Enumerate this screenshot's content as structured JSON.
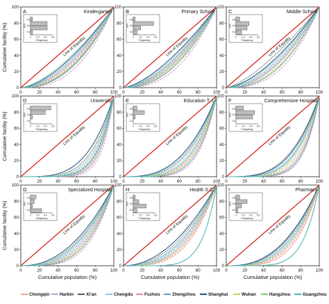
{
  "shared": {
    "ylabel": "Cumulative facility (%)",
    "xlabel": "Cumulative population (%)",
    "equality_label": "Line of Equality",
    "inset_xlabel": "Frequency",
    "inset_ylabel": "Gini",
    "inset_xticks": [
      "0",
      "0.2",
      "0.4",
      "0.6"
    ],
    "inset_yticks": [
      "0.4",
      "0.6",
      "0.8"
    ],
    "ticks": [
      "0",
      "20",
      "40",
      "60",
      "80",
      "100"
    ]
  },
  "legend": [
    {
      "name": "Chongqin",
      "color": "#f4a7a0"
    },
    {
      "name": "Harbin",
      "color": "#b9a7d3"
    },
    {
      "name": "Xi'an",
      "color": "#5e5e5e"
    },
    {
      "name": "Chengdu",
      "color": "#8cc6e8"
    },
    {
      "name": "Fuzhou",
      "color": "#e88ac2"
    },
    {
      "name": "Zhengzhou",
      "color": "#5aa2c8"
    },
    {
      "name": "Shanghai",
      "color": "#2a5a8a"
    },
    {
      "name": "Wuhan",
      "color": "#d8d24a"
    },
    {
      "name": "Hangzhou",
      "color": "#7ec87e"
    },
    {
      "name": "Guangzhou",
      "color": "#4fb6b6"
    }
  ],
  "chart_data": [
    {
      "type": "line",
      "letter": "A",
      "title": "Kindergarten",
      "xlim": [
        0,
        100
      ],
      "ylim": [
        0,
        100
      ],
      "curve_exponents": [
        1.9,
        2.0,
        2.2,
        1.8,
        2.6,
        1.7,
        1.6,
        2.1,
        1.5,
        2.3
      ],
      "inset_frequencies": [
        0.05,
        0.45,
        0.45,
        0.05
      ]
    },
    {
      "type": "line",
      "letter": "B",
      "title": "Primary School",
      "xlim": [
        0,
        100
      ],
      "ylim": [
        0,
        100
      ],
      "curve_exponents": [
        2.0,
        1.8,
        1.7,
        1.9,
        2.5,
        1.6,
        1.5,
        2.1,
        1.8,
        2.2
      ],
      "inset_frequencies": [
        0.05,
        0.55,
        0.2,
        0.1
      ]
    },
    {
      "type": "line",
      "letter": "C",
      "title": "Middle School",
      "xlim": [
        0,
        100
      ],
      "ylim": [
        0,
        100
      ],
      "curve_exponents": [
        2.1,
        1.9,
        1.4,
        2.0,
        2.7,
        1.7,
        1.6,
        2.3,
        1.8,
        2.4
      ],
      "inset_frequencies": [
        0.1,
        0.35,
        0.3,
        0.15
      ]
    },
    {
      "type": "line",
      "letter": "D",
      "title": "University",
      "xlim": [
        0,
        100
      ],
      "ylim": [
        0,
        100
      ],
      "curve_exponents": [
        6.5,
        5.5,
        4.2,
        7.0,
        8.0,
        5.0,
        3.6,
        6.0,
        4.6,
        5.8
      ],
      "inset_frequencies": [
        0.55,
        0.4,
        0.05,
        0.0
      ]
    },
    {
      "type": "line",
      "letter": "E",
      "title": "Education T. I.",
      "xlim": [
        0,
        100
      ],
      "ylim": [
        0,
        100
      ],
      "curve_exponents": [
        4.5,
        4.0,
        3.2,
        3.8,
        5.5,
        3.0,
        2.8,
        4.2,
        3.5,
        5.0
      ],
      "inset_frequencies": [
        0.1,
        0.3,
        0.05,
        0.0
      ]
    },
    {
      "type": "line",
      "letter": "F",
      "title": "Comprehensive Hospital",
      "xlim": [
        0,
        100
      ],
      "ylim": [
        0,
        100
      ],
      "curve_exponents": [
        5.5,
        5.0,
        3.2,
        4.0,
        6.5,
        3.8,
        3.4,
        4.5,
        4.2,
        6.0
      ],
      "inset_frequencies": [
        0.2,
        0.5,
        0.45,
        0.0
      ]
    },
    {
      "type": "line",
      "letter": "G",
      "title": "Specialized Hospital",
      "xlim": [
        0,
        100
      ],
      "ylim": [
        0,
        100
      ],
      "curve_exponents": [
        3.2,
        3.0,
        2.4,
        2.8,
        4.0,
        2.6,
        2.2,
        3.4,
        2.5,
        3.6
      ],
      "inset_frequencies": [
        0.15,
        0.1,
        0.05,
        0.3
      ]
    },
    {
      "type": "line",
      "letter": "H",
      "title": "Health S.C.",
      "xlim": [
        0,
        100
      ],
      "ylim": [
        0,
        100
      ],
      "curve_exponents": [
        3.0,
        2.6,
        2.2,
        2.8,
        3.4,
        2.4,
        2.0,
        3.2,
        2.5,
        6.5
      ],
      "inset_frequencies": [
        0.05,
        0.15,
        0.35,
        0.1
      ]
    },
    {
      "type": "line",
      "letter": "I",
      "title": "Pharmacy",
      "xlim": [
        0,
        100
      ],
      "ylim": [
        0,
        100
      ],
      "curve_exponents": [
        4.0,
        3.0,
        2.5,
        3.2,
        3.6,
        2.8,
        2.6,
        3.4,
        2.9,
        6.0
      ],
      "inset_frequencies": [
        0.1,
        0.3,
        0.15,
        0.05
      ]
    }
  ]
}
